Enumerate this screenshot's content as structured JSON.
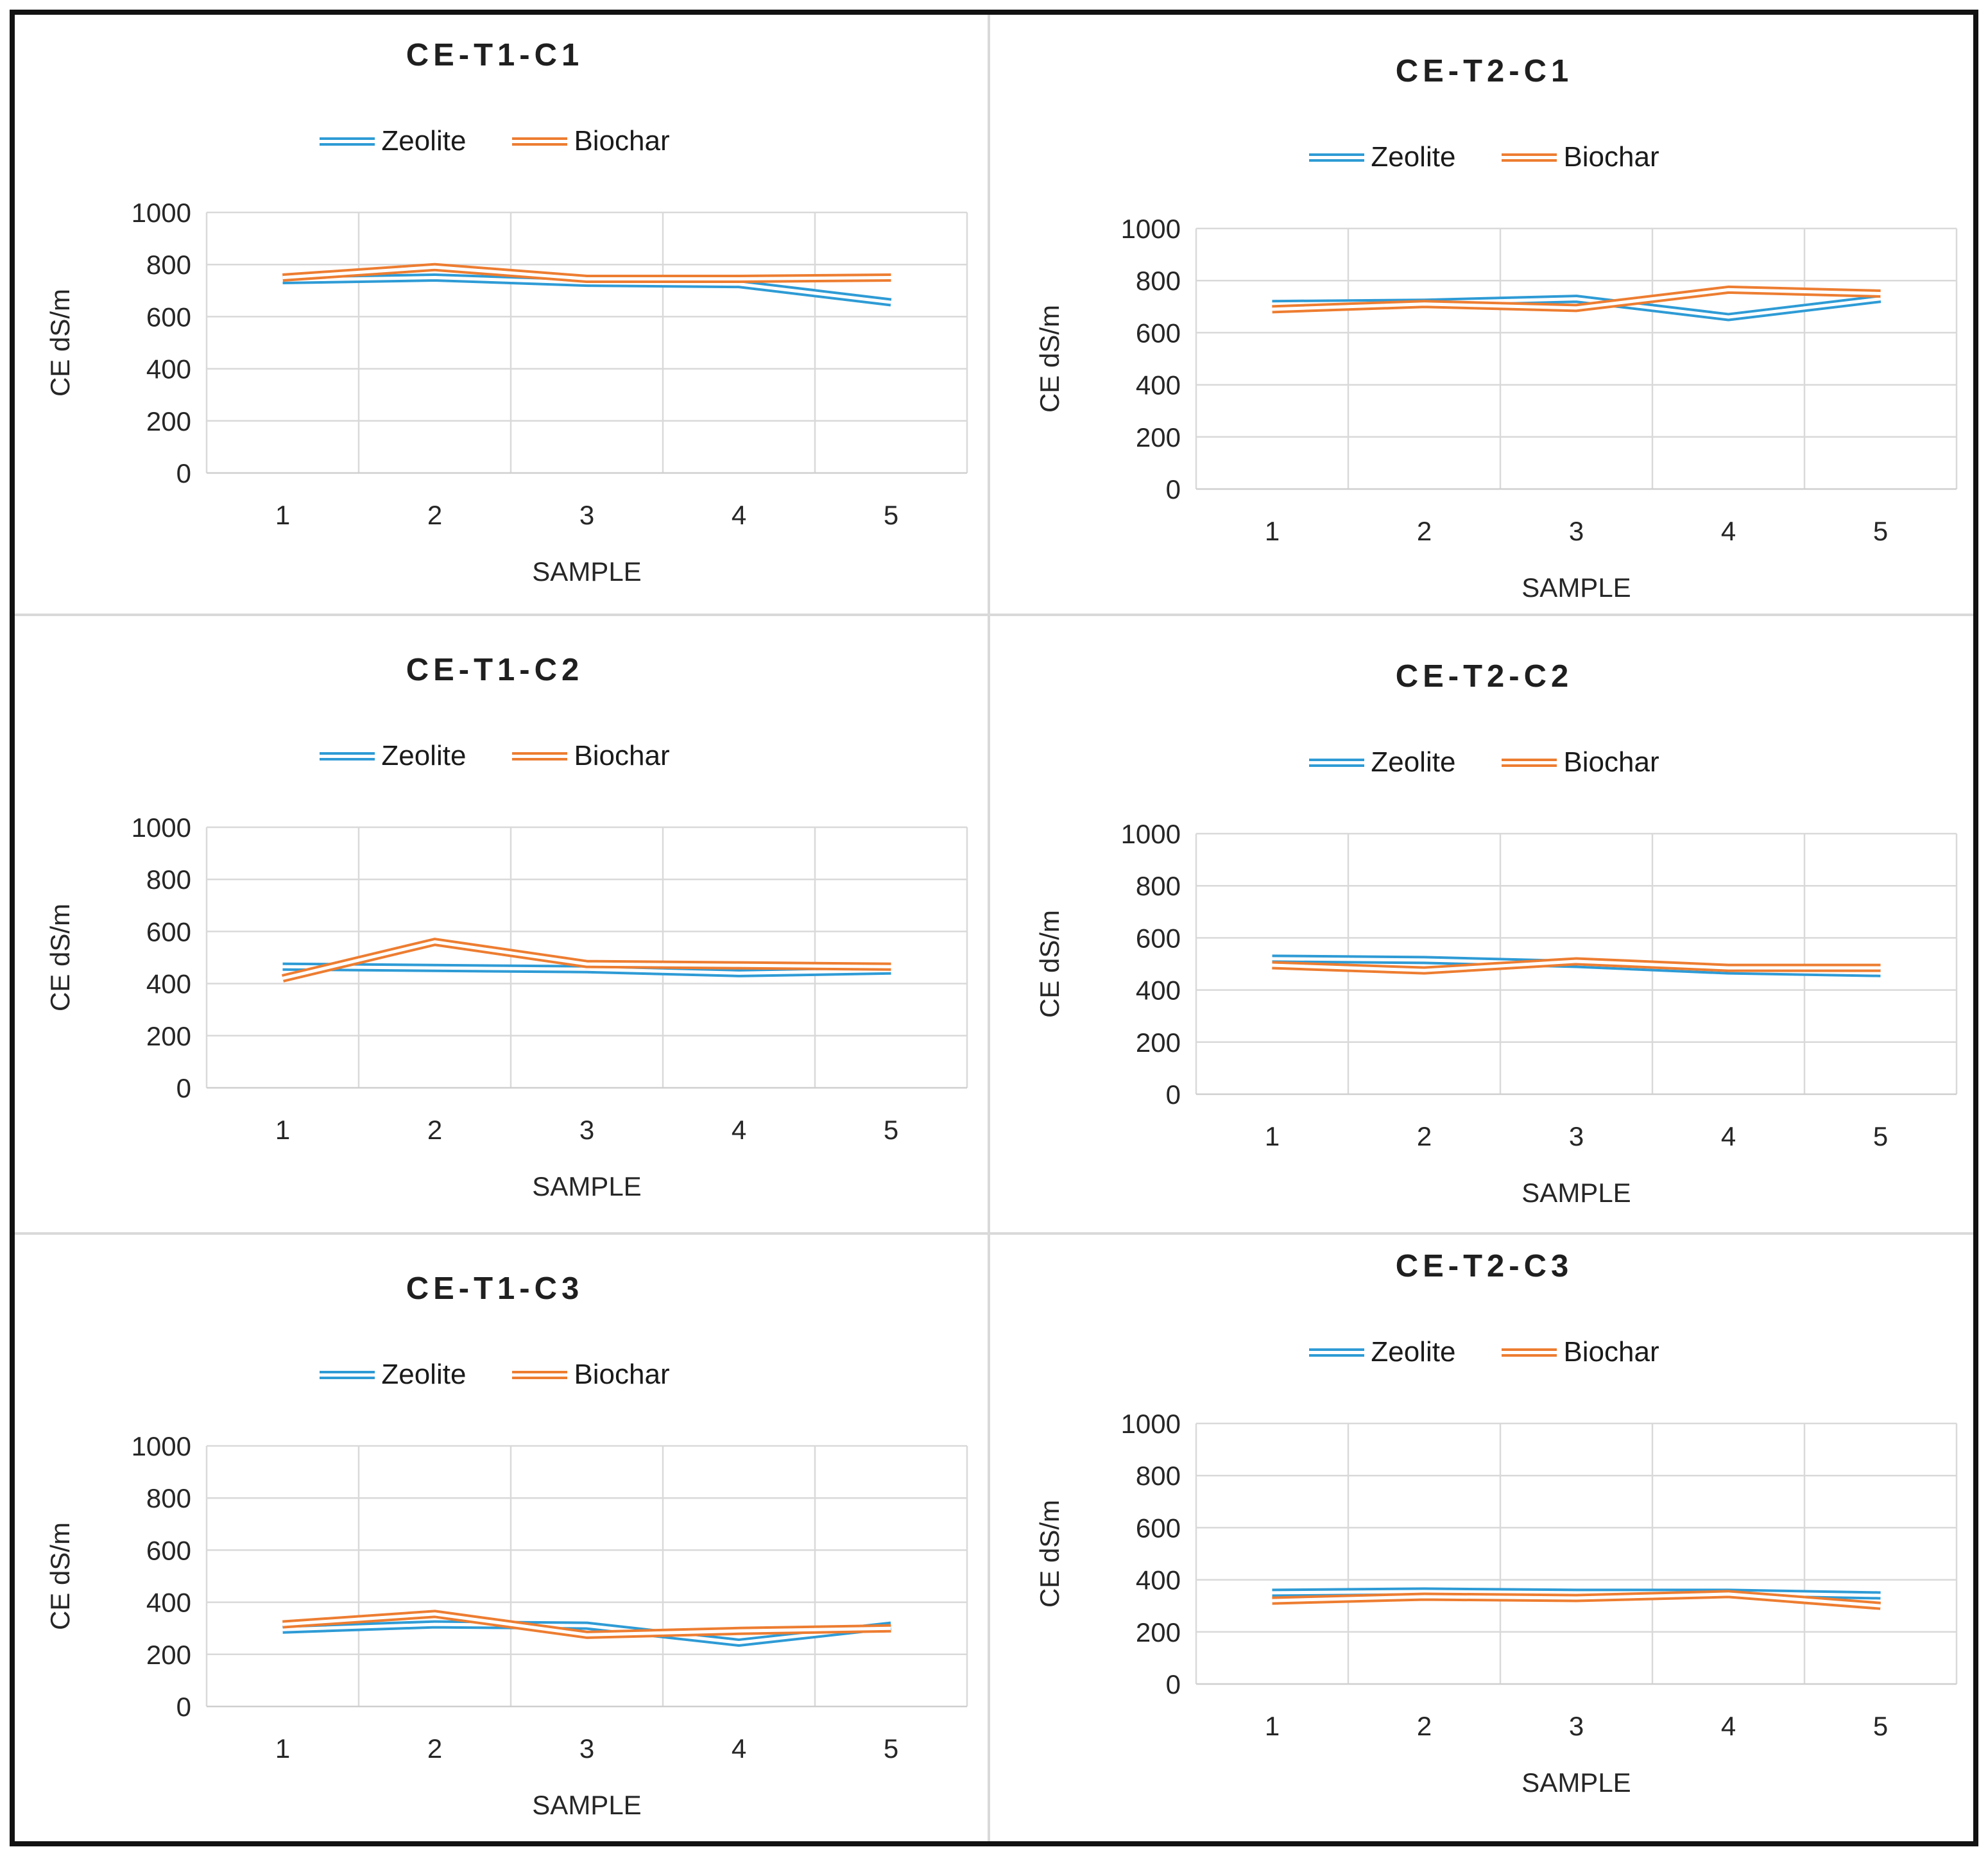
{
  "figure": {
    "background": "#FFFFFF",
    "border_color": "#121212",
    "divider_color": "#D9D9D9",
    "gridline_color": "#D9D9D9",
    "axis_line_color": "#CFCFCF",
    "text_color": "#262626",
    "title_color": "#1F1F1F",
    "series_colors": {
      "zeolite": "#2E9BD5",
      "biochar": "#ED7D31"
    },
    "grid_layout": "3 rows x 2 columns"
  },
  "chart_data": [
    {
      "type": "line",
      "title": "CE-T1-C1",
      "x_axis_title": "SAMPLE",
      "y_axis_title": "CE dS/m",
      "categories": [
        "1",
        "2",
        "3",
        "4",
        "5"
      ],
      "ylim": [
        0,
        1000
      ],
      "yticks": [
        0,
        200,
        400,
        600,
        800,
        1000
      ],
      "grid": true,
      "legend_position": "top",
      "line_style": "double",
      "series": [
        {
          "name": "Zeolite",
          "color": "#2E9BD5",
          "values": [
            740,
            750,
            730,
            725,
            655
          ]
        },
        {
          "name": "Biochar",
          "color": "#ED7D31",
          "values": [
            750,
            790,
            745,
            745,
            750
          ]
        }
      ]
    },
    {
      "type": "line",
      "title": "CE-T2-C1",
      "x_axis_title": "SAMPLE",
      "y_axis_title": "CE dS/m",
      "categories": [
        "1",
        "2",
        "3",
        "4",
        "5"
      ],
      "ylim": [
        0,
        1000
      ],
      "yticks": [
        0,
        200,
        400,
        600,
        800,
        1000
      ],
      "grid": true,
      "legend_position": "top",
      "line_style": "double",
      "series": [
        {
          "name": "Zeolite",
          "color": "#2E9BD5",
          "values": [
            710,
            715,
            730,
            660,
            730
          ]
        },
        {
          "name": "Biochar",
          "color": "#ED7D31",
          "values": [
            690,
            710,
            695,
            765,
            750
          ]
        }
      ]
    },
    {
      "type": "line",
      "title": "CE-T1-C2",
      "x_axis_title": "SAMPLE",
      "y_axis_title": "CE dS/m",
      "categories": [
        "1",
        "2",
        "3",
        "4",
        "5"
      ],
      "ylim": [
        0,
        1000
      ],
      "yticks": [
        0,
        200,
        400,
        600,
        800,
        1000
      ],
      "grid": true,
      "legend_position": "top",
      "line_style": "double",
      "series": [
        {
          "name": "Zeolite",
          "color": "#2E9BD5",
          "values": [
            465,
            460,
            455,
            440,
            450
          ]
        },
        {
          "name": "Biochar",
          "color": "#ED7D31",
          "values": [
            420,
            560,
            475,
            470,
            465
          ]
        }
      ]
    },
    {
      "type": "line",
      "title": "CE-T2-C2",
      "x_axis_title": "SAMPLE",
      "y_axis_title": "CE dS/m",
      "categories": [
        "1",
        "2",
        "3",
        "4",
        "5"
      ],
      "ylim": [
        0,
        1000
      ],
      "yticks": [
        0,
        200,
        400,
        600,
        800,
        1000
      ],
      "grid": true,
      "legend_position": "top",
      "line_style": "double",
      "series": [
        {
          "name": "Zeolite",
          "color": "#2E9BD5",
          "values": [
            520,
            515,
            500,
            475,
            465
          ]
        },
        {
          "name": "Biochar",
          "color": "#ED7D31",
          "values": [
            495,
            475,
            510,
            485,
            485
          ]
        }
      ]
    },
    {
      "type": "line",
      "title": "CE-T1-C3",
      "x_axis_title": "SAMPLE",
      "y_axis_title": "CE dS/m",
      "categories": [
        "1",
        "2",
        "3",
        "4",
        "5"
      ],
      "ylim": [
        0,
        1000
      ],
      "yticks": [
        0,
        200,
        400,
        600,
        800,
        1000
      ],
      "grid": true,
      "legend_position": "top",
      "line_style": "double",
      "series": [
        {
          "name": "Zeolite",
          "color": "#2E9BD5",
          "values": [
            295,
            315,
            310,
            245,
            310
          ]
        },
        {
          "name": "Biochar",
          "color": "#ED7D31",
          "values": [
            315,
            355,
            275,
            290,
            300
          ]
        }
      ]
    },
    {
      "type": "line",
      "title": "CE-T2-C3",
      "x_axis_title": "SAMPLE",
      "y_axis_title": "CE dS/m",
      "categories": [
        "1",
        "2",
        "3",
        "4",
        "5"
      ],
      "ylim": [
        0,
        1000
      ],
      "yticks": [
        0,
        200,
        400,
        600,
        800,
        1000
      ],
      "grid": true,
      "legend_position": "top",
      "line_style": "double",
      "series": [
        {
          "name": "Zeolite",
          "color": "#2E9BD5",
          "values": [
            350,
            355,
            350,
            350,
            340
          ]
        },
        {
          "name": "Biochar",
          "color": "#ED7D31",
          "values": [
            320,
            335,
            330,
            345,
            300
          ]
        }
      ]
    }
  ]
}
